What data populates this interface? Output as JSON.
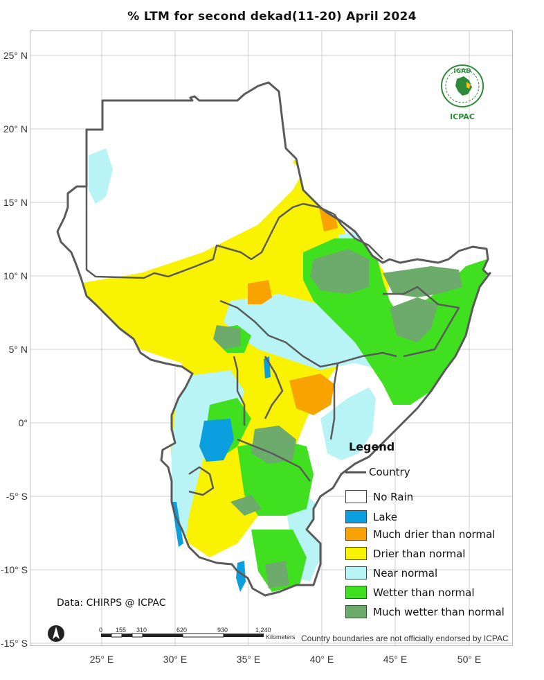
{
  "title": "% LTM  for second dekad(11-20) April 2024",
  "latitude_labels": [
    "25° N",
    "20° N",
    "15° N",
    "10° N",
    "5° N",
    "0°",
    "-5° S",
    "-10° S",
    "-15° S"
  ],
  "longitude_labels": [
    "25° E",
    "30° E",
    "35° E",
    "40° E",
    "45° E",
    "50° E"
  ],
  "logo": {
    "top_text": "IGAD",
    "bottom_text": "ICPAC",
    "icon": "igad-emblem-icon"
  },
  "legend": {
    "title": "Legend",
    "country_label": "Country",
    "items": [
      {
        "label": "No Rain",
        "color": "#ffffff"
      },
      {
        "label": "Lake",
        "color": "#0b9fe0"
      },
      {
        "label": "Much drier than normal",
        "color": "#f8a300"
      },
      {
        "label": "Drier than normal",
        "color": "#f9f200"
      },
      {
        "label": "Near normal",
        "color": "#b8f4f5"
      },
      {
        "label": "Wetter than normal",
        "color": "#40e021"
      },
      {
        "label": "Much wetter than normal",
        "color": "#6cab6c"
      }
    ]
  },
  "source": "Data: CHIRPS @ ICPAC",
  "scale": {
    "ticks": [
      "0",
      "155",
      "310",
      "620",
      "930",
      "1,240"
    ],
    "unit": "Kilometers"
  },
  "disclaimer": "Country boundaries are not officially endorsed by ICPAC",
  "colors": {
    "border": "#5a5a5a",
    "grid": "#cfcfcf"
  }
}
